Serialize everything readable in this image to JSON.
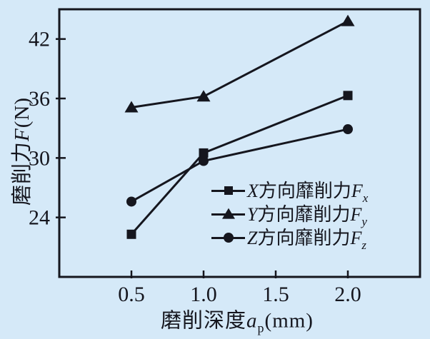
{
  "figure": {
    "background": "#d5e9f8",
    "ink": "#15161e"
  },
  "axes": {
    "x": {
      "label_prefix": "磨削深度",
      "label_var": "a",
      "label_sub": "p",
      "label_unit": "(mm)",
      "min": 0,
      "max": 2.5,
      "ticks": [
        0.5,
        1.0,
        1.5,
        2.0
      ],
      "tick_labels": [
        "0.5",
        "1.0",
        "1.5",
        "2.0"
      ]
    },
    "y": {
      "label_prefix": "磨削力",
      "label_var": "F",
      "label_unit": "(N)",
      "min": 18,
      "max": 45,
      "ticks": [
        24,
        30,
        36,
        42
      ],
      "tick_labels": [
        "24",
        "30",
        "36",
        "42"
      ]
    }
  },
  "legend": {
    "items": [
      {
        "axis": "X",
        "text": "方向靡削力",
        "force": "F",
        "sub": "x",
        "marker": "square"
      },
      {
        "axis": "Y",
        "text": "方向靡削力",
        "force": "F",
        "sub": "y",
        "marker": "triangle"
      },
      {
        "axis": "Z",
        "text": "方向靡削力",
        "force": "F",
        "sub": "z",
        "marker": "circle"
      }
    ]
  },
  "chart_data": {
    "type": "line",
    "title": "",
    "x": [
      0.5,
      1.0,
      2.0
    ],
    "series": [
      {
        "name": "X方向靡削力Fx",
        "marker": "square",
        "values": [
          22.3,
          30.5,
          36.3
        ]
      },
      {
        "name": "Y方向靡削力Fy",
        "marker": "triangle",
        "values": [
          35.1,
          36.2,
          43.8
        ]
      },
      {
        "name": "Z方向靡削力Fz",
        "marker": "circle",
        "values": [
          25.6,
          29.7,
          32.9
        ]
      }
    ],
    "xlabel": "磨削深度ap (mm)",
    "ylabel": "磨削力F (N)",
    "xlim": [
      0,
      2.5
    ],
    "ylim": [
      18,
      45
    ],
    "xticks": [
      0.5,
      1.0,
      1.5,
      2.0
    ],
    "yticks": [
      24,
      30,
      36,
      42
    ],
    "grid": false,
    "legend_position": "inside lower-right",
    "line_color": "#15161e",
    "marker_color": "#15161e",
    "background_color": "#d5e9f8"
  }
}
